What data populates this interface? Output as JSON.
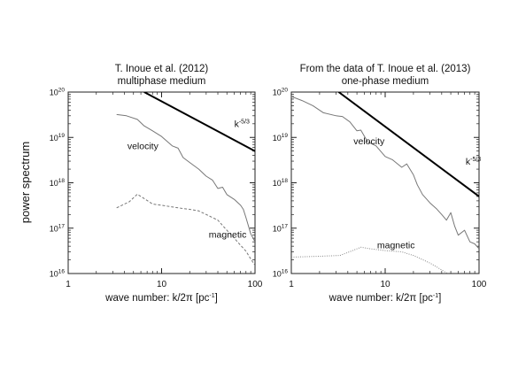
{
  "y_axis_label": "power spectrum",
  "chart_data": [
    {
      "type": "line",
      "title": "T. Inoue et al. (2012)",
      "subtitle": "multiphase medium",
      "xlabel_main": "wave number: k/2π [pc",
      "xlabel_sup": "-1",
      "xlabel_end": "]",
      "x_scale": "log",
      "y_scale": "log",
      "xlim": [
        1,
        100
      ],
      "ylim": [
        1e+16,
        1e+20
      ],
      "x_ticks": [
        {
          "value": 1,
          "label": "1"
        },
        {
          "value": 10,
          "label": "10"
        },
        {
          "value": 100,
          "label": "100"
        }
      ],
      "y_ticks": [
        {
          "value": 1e+16,
          "base": "10",
          "exp": "16"
        },
        {
          "value": 1e+17,
          "base": "10",
          "exp": "17"
        },
        {
          "value": 1e+18,
          "base": "10",
          "exp": "18"
        },
        {
          "value": 1e+19,
          "base": "10",
          "exp": "19"
        },
        {
          "value": 1e+20,
          "base": "10",
          "exp": "20"
        }
      ],
      "series": [
        {
          "name": "velocity",
          "style": "solid",
          "color": "#777777",
          "points": [
            [
              3.3,
              3.2e+19
            ],
            [
              4.2,
              3e+19
            ],
            [
              5.5,
              2.5e+19
            ],
            [
              6.5,
              1.8e+19
            ],
            [
              8,
              1.4e+19
            ],
            [
              10,
              1.05e+19
            ],
            [
              13,
              6.5e+18
            ],
            [
              15,
              5.8e+18
            ],
            [
              17,
              3.6e+18
            ],
            [
              20,
              2.8e+18
            ],
            [
              25,
              2e+18
            ],
            [
              30,
              1.4e+18
            ],
            [
              35,
              1.15e+18
            ],
            [
              40,
              7.5e+17
            ],
            [
              45,
              8e+17
            ],
            [
              50,
              5.5e+17
            ],
            [
              60,
              4.3e+17
            ],
            [
              70,
              3.2e+17
            ],
            [
              75,
              2.6e+17
            ],
            [
              80,
              1.7e+17
            ],
            [
              90,
              7.5e+16
            ],
            [
              100,
              5e+16
            ]
          ]
        },
        {
          "name": "magnetic",
          "style": "dashed",
          "color": "#777777",
          "points": [
            [
              3.3,
              2.8e+17
            ],
            [
              4.5,
              3.8e+17
            ],
            [
              5.5,
              5.6e+17
            ],
            [
              6.5,
              4.5e+17
            ],
            [
              8,
              3.4e+17
            ],
            [
              10,
              3.2e+17
            ],
            [
              15,
              2.8e+17
            ],
            [
              20,
              2.6e+17
            ],
            [
              25,
              2.4e+17
            ],
            [
              30,
              2e+17
            ],
            [
              40,
              1.5e+17
            ],
            [
              50,
              9e+16
            ],
            [
              60,
              6e+16
            ],
            [
              70,
              4.2e+16
            ],
            [
              80,
              3.1e+16
            ],
            [
              90,
              2.1e+16
            ],
            [
              100,
              1.5e+16
            ]
          ]
        },
        {
          "name": "k-5/3",
          "style": "solid",
          "color": "#000000",
          "points": [
            [
              6.5,
              1e+20
            ],
            [
              100,
              5e+18
            ]
          ]
        }
      ],
      "annotations": [
        {
          "text": "velocity",
          "x": 4.3,
          "y": 5.5e+18
        },
        {
          "text": "magnetic",
          "x": 32,
          "y": 6.2e+16
        },
        {
          "text": "k",
          "sup": "-5/3",
          "x": 60,
          "y": 1.7e+19
        }
      ]
    },
    {
      "type": "line",
      "title": "From the data of T. Inoue et al. (2013)",
      "subtitle": "one-phase medium",
      "xlabel_main": "wave number: k/2π [pc",
      "xlabel_sup": "-1",
      "xlabel_end": "]",
      "x_scale": "log",
      "y_scale": "log",
      "xlim": [
        1,
        100
      ],
      "ylim": [
        1e+16,
        1e+20
      ],
      "x_ticks": [
        {
          "value": 1,
          "label": "1"
        },
        {
          "value": 10,
          "label": "10"
        },
        {
          "value": 100,
          "label": "100"
        }
      ],
      "y_ticks": [
        {
          "value": 1e+16,
          "base": "10",
          "exp": "16"
        },
        {
          "value": 1e+17,
          "base": "10",
          "exp": "17"
        },
        {
          "value": 1e+18,
          "base": "10",
          "exp": "18"
        },
        {
          "value": 1e+19,
          "base": "10",
          "exp": "19"
        },
        {
          "value": 1e+20,
          "base": "10",
          "exp": "20"
        }
      ],
      "series": [
        {
          "name": "velocity",
          "style": "solid",
          "color": "#777777",
          "points": [
            [
              1,
              8e+19
            ],
            [
              1.3,
              6.5e+19
            ],
            [
              1.7,
              5e+19
            ],
            [
              2.2,
              3.5e+19
            ],
            [
              3,
              3e+19
            ],
            [
              3.5,
              2.9e+19
            ],
            [
              4.2,
              2.2e+19
            ],
            [
              5,
              1.4e+19
            ],
            [
              5.5,
              1.45e+19
            ],
            [
              6.5,
              8e+18
            ],
            [
              8,
              6.5e+18
            ],
            [
              10,
              3.8e+18
            ],
            [
              12,
              3.2e+18
            ],
            [
              15,
              2.2e+18
            ],
            [
              17,
              2.6e+18
            ],
            [
              20,
              1.5e+18
            ],
            [
              22,
              9e+17
            ],
            [
              25,
              5.5e+17
            ],
            [
              30,
              3.6e+17
            ],
            [
              35,
              2.7e+17
            ],
            [
              40,
              2e+17
            ],
            [
              45,
              1.5e+17
            ],
            [
              50,
              2.2e+17
            ],
            [
              55,
              1.1e+17
            ],
            [
              60,
              7e+16
            ],
            [
              70,
              9e+16
            ],
            [
              80,
              5e+16
            ],
            [
              90,
              4.5e+16
            ],
            [
              100,
              3.5e+16
            ]
          ]
        },
        {
          "name": "magnetic",
          "style": "dotted",
          "color": "#888888",
          "points": [
            [
              1,
              2.3e+16
            ],
            [
              2,
              2.4e+16
            ],
            [
              3.3,
              2.5e+16
            ],
            [
              4.5,
              3.2e+16
            ],
            [
              5.5,
              3.8e+16
            ],
            [
              7,
              3.5e+16
            ],
            [
              10,
              3.2e+16
            ],
            [
              15,
              3e+16
            ],
            [
              20,
              2.5e+16
            ],
            [
              30,
              1.7e+16
            ],
            [
              40,
              1.2e+16
            ],
            [
              50,
              9000000000000000.0
            ]
          ]
        },
        {
          "name": "k-5/3",
          "style": "solid",
          "color": "#000000",
          "points": [
            [
              3.2,
              1e+20
            ],
            [
              100,
              5e+17
            ]
          ]
        }
      ],
      "annotations": [
        {
          "text": "velocity",
          "x": 4.6,
          "y": 7e+18
        },
        {
          "text": "magnetic",
          "x": 8.2,
          "y": 3.6e+16
        },
        {
          "text": "k",
          "sup": "-5/3",
          "x": 72,
          "y": 2.5e+18
        }
      ]
    }
  ]
}
